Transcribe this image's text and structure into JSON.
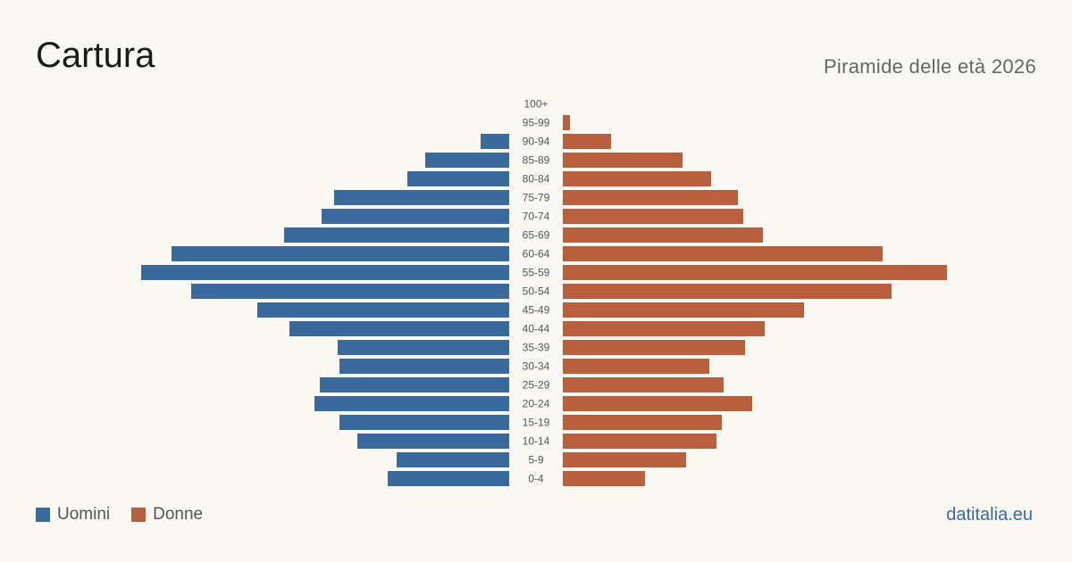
{
  "header": {
    "title": "Cartura",
    "subtitle": "Piramide delle età 2026"
  },
  "legend": {
    "men_label": "Uomini",
    "women_label": "Donne"
  },
  "footer": {
    "brand": "datitalia.eu"
  },
  "colors": {
    "men": "#3a6a9c",
    "women": "#b85f3e"
  },
  "chart_data": {
    "type": "bar",
    "orientation": "horizontal-pyramid",
    "categories": [
      "100+",
      "95-99",
      "90-94",
      "85-89",
      "80-84",
      "75-79",
      "70-74",
      "65-69",
      "60-64",
      "55-59",
      "50-54",
      "45-49",
      "40-44",
      "35-39",
      "30-34",
      "25-29",
      "20-24",
      "15-19",
      "10-14",
      "5-9",
      "0-4"
    ],
    "series": [
      {
        "name": "Uomini",
        "values": [
          0,
          0,
          16,
          47,
          57,
          98,
          105,
          126,
          189,
          206,
          178,
          141,
          123,
          96,
          95,
          106,
          109,
          95,
          85,
          63,
          68
        ]
      },
      {
        "name": "Donne",
        "values": [
          0,
          4,
          27,
          67,
          83,
          98,
          101,
          112,
          179,
          215,
          184,
          135,
          113,
          102,
          82,
          90,
          106,
          89,
          86,
          69,
          46
        ]
      }
    ],
    "grid": false,
    "legend_position": "bottom-left"
  }
}
